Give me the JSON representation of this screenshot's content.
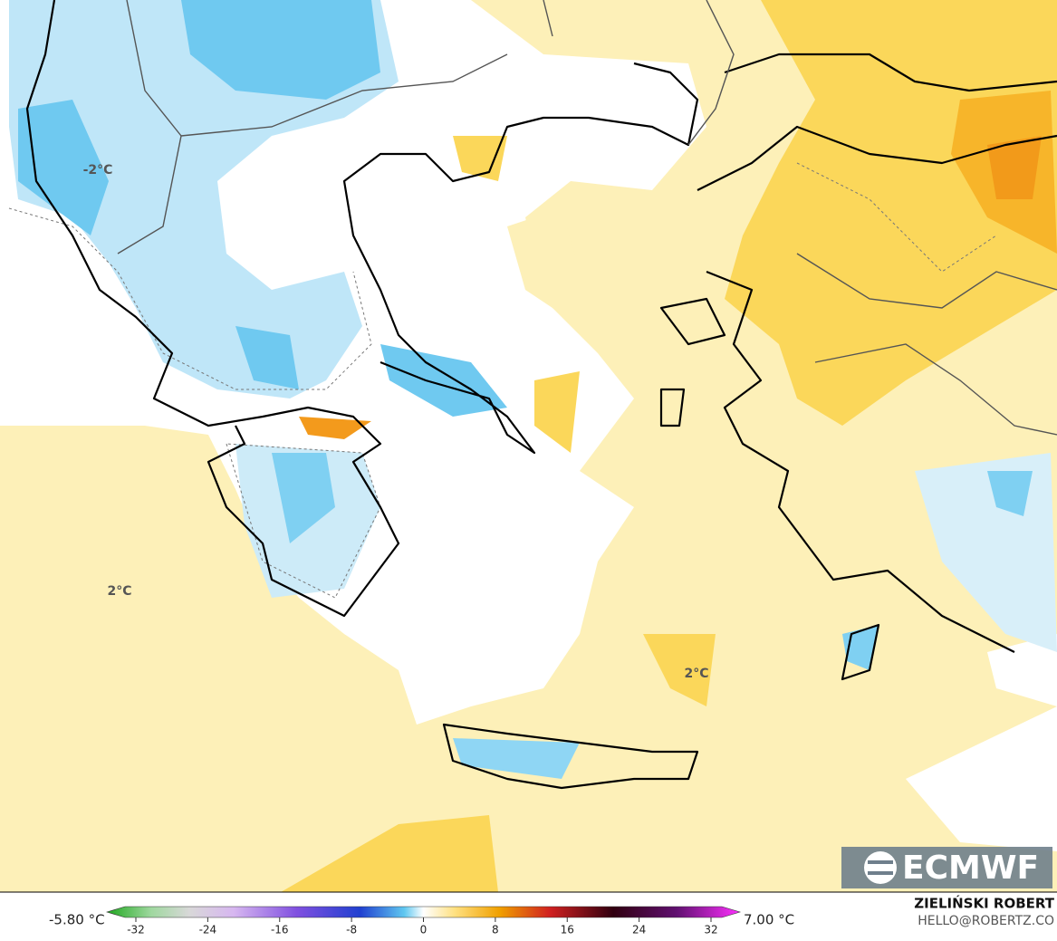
{
  "map": {
    "labels": [
      {
        "text": "-2°C"
      },
      {
        "text": "2°C"
      },
      {
        "text": "2°C"
      }
    ],
    "logo": "ECMWF",
    "colorbar": {
      "min_label": "-5.80 °C",
      "max_label": "7.00 °C",
      "ticks": [
        -32,
        -24,
        -16,
        -8,
        0,
        8,
        16,
        24,
        32
      ]
    },
    "credits": {
      "author": "ZIELIŃSKI ROBERT",
      "contact": "HELLO@ROBERTZ.CO"
    }
  }
}
